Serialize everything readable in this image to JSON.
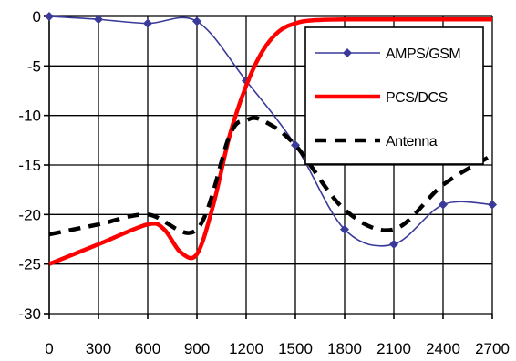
{
  "chart_data": {
    "type": "line",
    "title": "",
    "xlabel": "",
    "ylabel": "",
    "xlim": [
      0,
      2700
    ],
    "ylim": [
      -30,
      0
    ],
    "x_ticks": [
      0,
      300,
      600,
      900,
      1200,
      1500,
      1800,
      2100,
      2400,
      2700
    ],
    "y_ticks": [
      0,
      -5,
      -10,
      -15,
      -20,
      -25,
      -30
    ],
    "x_tick_labels": [
      "0",
      "300",
      "600",
      "900",
      "1200",
      "1500",
      "1800",
      "2100",
      "2400",
      "2700"
    ],
    "y_tick_labels": [
      "0",
      "-5",
      "-10",
      "-15",
      "-20",
      "-25",
      "-30"
    ],
    "grid": true,
    "legend_position": "top-right",
    "series": [
      {
        "name": "AMPS/GSM",
        "color": "#3a3a9a",
        "style": "thin line with diamond markers",
        "points": [
          [
            0,
            0
          ],
          [
            300,
            -0.3
          ],
          [
            600,
            -0.7
          ],
          [
            900,
            -0.5
          ],
          [
            1200,
            -6.5
          ],
          [
            1500,
            -13
          ],
          [
            1800,
            -21.5
          ],
          [
            2100,
            -23
          ],
          [
            2400,
            -19
          ],
          [
            2700,
            -19
          ]
        ]
      },
      {
        "name": "PCS/DCS",
        "color": "#ff0000",
        "style": "thick solid",
        "points": [
          [
            0,
            -25
          ],
          [
            300,
            -23
          ],
          [
            600,
            -21
          ],
          [
            700,
            -21.5
          ],
          [
            800,
            -23.8
          ],
          [
            900,
            -24
          ],
          [
            1000,
            -19
          ],
          [
            1100,
            -12
          ],
          [
            1200,
            -7
          ],
          [
            1300,
            -3.5
          ],
          [
            1400,
            -1.5
          ],
          [
            1500,
            -0.7
          ],
          [
            1600,
            -0.4
          ],
          [
            1800,
            -0.3
          ],
          [
            2100,
            -0.3
          ],
          [
            2400,
            -0.3
          ],
          [
            2700,
            -0.3
          ]
        ]
      },
      {
        "name": "Antenna",
        "color": "#000000",
        "style": "thick dashed",
        "points": [
          [
            0,
            -22
          ],
          [
            300,
            -21
          ],
          [
            600,
            -20
          ],
          [
            900,
            -21.5
          ],
          [
            1100,
            -12
          ],
          [
            1200,
            -10.5
          ],
          [
            1300,
            -10.5
          ],
          [
            1500,
            -13
          ],
          [
            1800,
            -19.5
          ],
          [
            2100,
            -21.5
          ],
          [
            2400,
            -17
          ],
          [
            2700,
            -14
          ]
        ]
      }
    ]
  }
}
